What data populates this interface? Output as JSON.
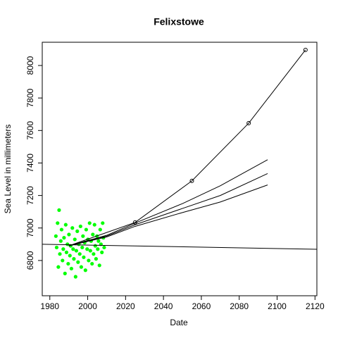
{
  "chart_data": {
    "type": "line",
    "title": "Felixstowe",
    "xlabel": "Date",
    "ylabel": "Sea Level in millimeters",
    "xlim": [
      1976,
      2121
    ],
    "ylim": [
      6583,
      8143
    ],
    "xticks": [
      1980,
      2000,
      2020,
      2040,
      2060,
      2080,
      2100,
      2120
    ],
    "yticks": [
      6800,
      7000,
      7200,
      7400,
      7600,
      7800,
      8000
    ],
    "series": [
      {
        "kind": "points",
        "color": "#00ff00",
        "x": [
          1983.2,
          1983.6,
          1984.1,
          1984.5,
          1984.9,
          1985.3,
          1985.8,
          1986.2,
          1986.7,
          1987.1,
          1987.5,
          1988.0,
          1988.4,
          1988.8,
          1989.3,
          1989.7,
          1990.1,
          1990.6,
          1991.0,
          1991.4,
          1991.9,
          1992.3,
          1992.7,
          1993.2,
          1993.6,
          1994.0,
          1994.5,
          1994.9,
          1995.3,
          1995.8,
          1996.2,
          1996.6,
          1997.1,
          1997.5,
          1997.9,
          1998.4,
          1998.8,
          1999.2,
          1999.7,
          2000.1,
          2000.5,
          2001.0,
          2001.4,
          2001.8,
          2002.3,
          2002.7,
          2003.1,
          2003.6,
          2004.0,
          2004.4,
          2004.9,
          2005.3,
          2005.7,
          2006.2,
          2006.6,
          2007.0,
          2007.5,
          2007.9,
          2008.3,
          2008.7
        ],
        "values": [
          6950,
          6880,
          7030,
          6760,
          7110,
          6840,
          6920,
          6990,
          6800,
          6870,
          6940,
          6720,
          7020,
          6850,
          6900,
          6780,
          6960,
          6830,
          6890,
          6750,
          7000,
          6870,
          6810,
          6930,
          6700,
          6860,
          6980,
          6790,
          6900,
          6840,
          7010,
          6760,
          6880,
          6950,
          6820,
          6910,
          6740,
          6990,
          6870,
          6930,
          6800,
          7030,
          6860,
          6920,
          6780,
          6960,
          6840,
          7020,
          6890,
          6810,
          6950,
          6870,
          6920,
          6770,
          6990,
          6900,
          6850,
          7030,
          6940,
          6880
        ]
      },
      {
        "kind": "line",
        "color": "#000000",
        "x": [
          1976,
          2121
        ],
        "values": [
          6900,
          6869
        ]
      },
      {
        "kind": "line",
        "color": "#000000",
        "x": [
          1990,
          2010,
          2025,
          2050,
          2070,
          2095
        ],
        "values": [
          6890,
          6955,
          7030,
          7150,
          7260,
          7420
        ]
      },
      {
        "kind": "line",
        "color": "#000000",
        "x": [
          1990,
          2010,
          2025,
          2050,
          2070,
          2095
        ],
        "values": [
          6890,
          6950,
          7020,
          7120,
          7200,
          7335
        ]
      },
      {
        "kind": "line",
        "color": "#000000",
        "x": [
          1990,
          2010,
          2025,
          2050,
          2070,
          2095
        ],
        "values": [
          6890,
          6945,
          7010,
          7095,
          7160,
          7265
        ]
      },
      {
        "kind": "line",
        "color": "#000000",
        "x": [
          1990,
          2025,
          2055,
          2085,
          2115
        ],
        "values": [
          6890,
          7034,
          7290,
          7645,
          8096
        ],
        "markers": [
          false,
          true,
          true,
          true,
          true
        ]
      }
    ]
  }
}
